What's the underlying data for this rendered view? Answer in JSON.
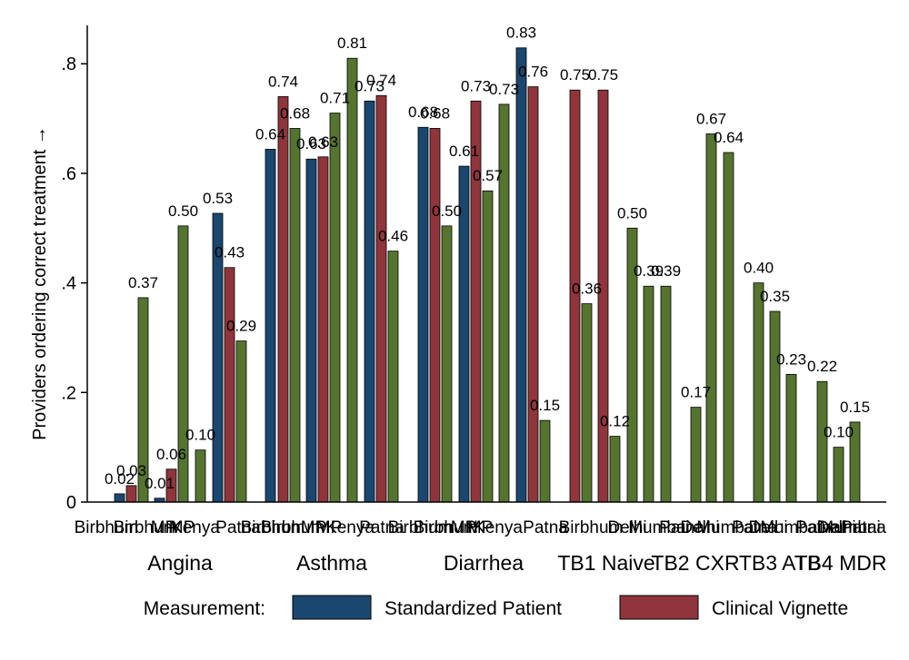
{
  "chart_data": {
    "type": "bar",
    "title": "",
    "ylabel": "Providers ordering correct treatment →",
    "xlabel": "",
    "ylim": [
      0,
      0.87
    ],
    "yticks": [
      0,
      0.2,
      0.4,
      0.6,
      0.8
    ],
    "ytick_labels": [
      "0",
      ".2",
      ".4",
      ".6",
      ".8"
    ],
    "grid": false,
    "legend": {
      "title": "Measurement:",
      "placement": "bottom",
      "entries": [
        {
          "name": "Standardized Patient",
          "color": "#1a476f"
        },
        {
          "name": "Clinical Vignette",
          "color": "#90353b"
        }
      ]
    },
    "unlabeled_series_color": "#55752f",
    "groups": [
      {
        "label": "Angina",
        "bars": [
          {
            "sub": "Birbhum",
            "series": "sp",
            "value": 0.015
          },
          {
            "sub": "Birbhum",
            "series": "cv",
            "value": 0.03,
            "label": "0.03"
          },
          {
            "sub": "Birbhum",
            "series": "other",
            "value": 0.373,
            "label": "0.37"
          },
          {
            "sub": "MP",
            "series": "sp",
            "value": 0.007
          },
          {
            "sub": "MP",
            "series": "cv",
            "value": 0.06,
            "label": "0.06"
          },
          {
            "sub": "MP",
            "series": "other",
            "value": 0.504,
            "label": "0.50"
          },
          {
            "sub": "Kenya",
            "series": "other",
            "value": 0.095,
            "label": "0.10"
          },
          {
            "sub": "Patna",
            "series": "sp",
            "value": 0.527,
            "label": "0.53"
          },
          {
            "sub": "Patna",
            "series": "cv",
            "value": 0.428,
            "label": "0.43"
          },
          {
            "sub": "Patna",
            "series": "other",
            "value": 0.294,
            "label": "0.29"
          }
        ],
        "extra_labels": [
          {
            "text": "0.02",
            "near": 0
          },
          {
            "text": "0.01",
            "near": 3
          }
        ]
      },
      {
        "label": "Asthma",
        "bars": [
          {
            "sub": "Birbhum",
            "series": "sp",
            "value": 0.644,
            "label": "0.64"
          },
          {
            "sub": "Birbhum",
            "series": "cv",
            "value": 0.74,
            "label": "0.74"
          },
          {
            "sub": "Birbhum",
            "series": "other",
            "value": 0.682,
            "label": "0.68"
          },
          {
            "sub": "MP",
            "series": "sp",
            "value": 0.626,
            "label": "0.63"
          },
          {
            "sub": "MP",
            "series": "cv",
            "value": 0.63,
            "label": "0.63"
          },
          {
            "sub": "MP",
            "series": "other",
            "value": 0.71,
            "label": "0.71"
          },
          {
            "sub": "Kenya",
            "series": "other",
            "value": 0.81,
            "label": "0.81"
          },
          {
            "sub": "Patna",
            "series": "sp",
            "value": 0.732,
            "label": "0.73"
          },
          {
            "sub": "Patna",
            "series": "cv",
            "value": 0.742,
            "label": "0.74"
          },
          {
            "sub": "Patna",
            "series": "other",
            "value": 0.458,
            "label": "0.46"
          }
        ]
      },
      {
        "label": "Diarrhea",
        "bars": [
          {
            "sub": "Birbhum",
            "series": "sp",
            "value": 0.684,
            "label": "0.68"
          },
          {
            "sub": "Birbhum",
            "series": "cv",
            "value": 0.682,
            "label": "0.68"
          },
          {
            "sub": "Birbhum",
            "series": "other",
            "value": 0.504,
            "label": "0.50"
          },
          {
            "sub": "MP",
            "series": "sp",
            "value": 0.613,
            "label": "0.61"
          },
          {
            "sub": "MP",
            "series": "cv",
            "value": 0.732,
            "label": "0.73"
          },
          {
            "sub": "MP",
            "series": "other",
            "value": 0.568,
            "label": "0.57"
          },
          {
            "sub": "Kenya",
            "series": "other",
            "value": 0.726,
            "label": "0.73"
          },
          {
            "sub": "Patna",
            "series": "sp",
            "value": 0.829,
            "label": "0.83"
          },
          {
            "sub": "Patna",
            "series": "cv",
            "value": 0.758,
            "label": "0.76"
          },
          {
            "sub": "Patna",
            "series": "other",
            "value": 0.149,
            "label": "0.15"
          }
        ]
      },
      {
        "label": "TB1 Naive",
        "bars": [
          {
            "sub": "Birbhum",
            "series": "cv",
            "value": 0.752,
            "label": "0.75"
          },
          {
            "sub": "Birbhum",
            "series": "other",
            "value": 0.362,
            "label": "0.36"
          },
          {
            "sub": "MP",
            "series": "cv",
            "value": 0.752,
            "label": "0.75"
          },
          {
            "sub": "MP",
            "series": "other",
            "value": 0.12,
            "label": "0.12"
          },
          {
            "sub": "Kenya",
            "series": "other",
            "value": 0.5,
            "label": "0.50"
          },
          {
            "sub": "Patna",
            "series": "other",
            "value": 0.394,
            "label": "0.39"
          },
          {
            "sub": "Patna",
            "series": "other",
            "value": 0.394,
            "label": "0.39"
          }
        ]
      },
      {
        "label": "TB2 CXR",
        "bars": [
          {
            "sub": "Delhi",
            "series": "other",
            "value": 0.173,
            "label": "0.17"
          },
          {
            "sub": "Mumbai",
            "series": "other",
            "value": 0.672,
            "label": "0.67"
          },
          {
            "sub": "Patna",
            "series": "other",
            "value": 0.638,
            "label": "0.64"
          }
        ]
      },
      {
        "label": "TB3 ATB",
        "bars": [
          {
            "sub": "Delhi",
            "series": "other",
            "value": 0.4,
            "label": "0.40"
          },
          {
            "sub": "Mumbai",
            "series": "other",
            "value": 0.348,
            "label": "0.35"
          },
          {
            "sub": "Patna",
            "series": "other",
            "value": 0.233,
            "label": "0.23"
          }
        ]
      },
      {
        "label": "TB4 MDR",
        "bars": [
          {
            "sub": "Delhi",
            "series": "other",
            "value": 0.22,
            "label": "0.22"
          },
          {
            "sub": "Mumbai",
            "series": "other",
            "value": 0.1,
            "label": "0.10"
          },
          {
            "sub": "Patna",
            "series": "other",
            "value": 0.146,
            "label": "0.15"
          }
        ]
      }
    ],
    "sub_labels": [
      {
        "text": "Birbhum",
        "x": 117
      },
      {
        "text": "Birbhum",
        "x": 160
      },
      {
        "text": "MP",
        "x": 180
      },
      {
        "text": "MP",
        "x": 200
      },
      {
        "text": "Kenya",
        "x": 215
      },
      {
        "text": "Patna",
        "x": 262
      },
      {
        "text": "Birbhum",
        "x": 300
      },
      {
        "text": "Birbhum",
        "x": 322
      },
      {
        "text": "MP",
        "x": 345
      },
      {
        "text": "MP",
        "x": 362
      },
      {
        "text": "Kenya",
        "x": 385
      },
      {
        "text": "Patna",
        "x": 420
      },
      {
        "text": "Birbhum",
        "x": 462
      },
      {
        "text": "Birbhum",
        "x": 490
      },
      {
        "text": "MP",
        "x": 510
      },
      {
        "text": "MP",
        "x": 528
      },
      {
        "text": "Kenya",
        "x": 548
      },
      {
        "text": "Patna",
        "x": 600
      },
      {
        "text": "Birbhum",
        "x": 650
      },
      {
        "text": "Delhi",
        "x": 690
      },
      {
        "text": "Mumbai",
        "x": 725
      },
      {
        "text": "Patna",
        "x": 750
      },
      {
        "text": "Delhi",
        "x": 770
      },
      {
        "text": "Mumbai",
        "x": 800
      },
      {
        "text": "Patna",
        "x": 830
      },
      {
        "text": "Delhi",
        "x": 845
      },
      {
        "text": "Mumbai",
        "x": 870
      },
      {
        "text": "Patna",
        "x": 900
      },
      {
        "text": "Delhi",
        "x": 920
      },
      {
        "text": "Mumbai",
        "x": 935
      },
      {
        "text": "Patna",
        "x": 950
      }
    ]
  }
}
